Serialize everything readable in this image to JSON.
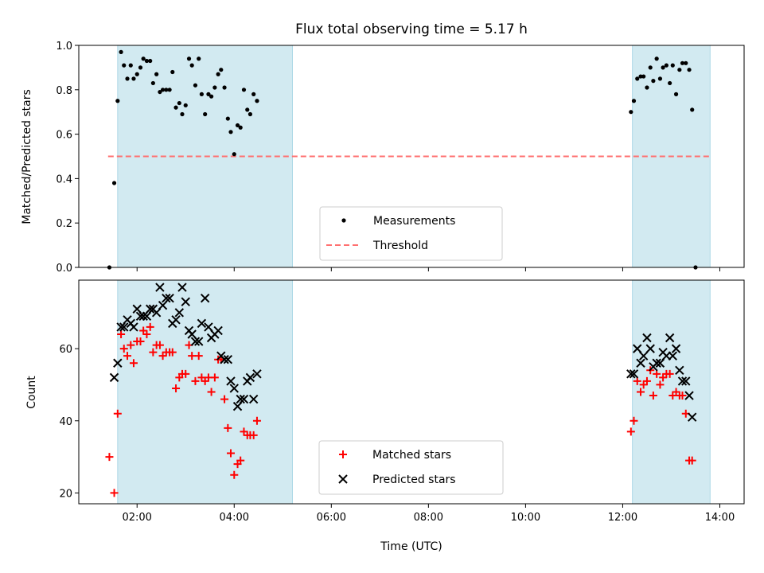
{
  "chart_data": {
    "title": "Flux total observing time = 5.17 h",
    "xlabel": "Time (UTC)",
    "x_tick_labels": [
      "02:00",
      "04:00",
      "06:00",
      "08:00",
      "10:00",
      "12:00",
      "14:00"
    ],
    "x_range_hours": [
      0.8,
      14.5
    ],
    "observing_windows_hours": [
      [
        1.6,
        5.2
      ],
      [
        12.2,
        13.8
      ]
    ],
    "colors": {
      "window_fill": "#add8e6",
      "measurement": "#000000",
      "threshold": "#ff7070",
      "matched": "#ff0000",
      "predicted": "#000000"
    },
    "panels": [
      {
        "type": "scatter",
        "ylabel": "Matched/Predicted stars",
        "ylim": [
          0.0,
          1.0
        ],
        "y_ticks": [
          "0.0",
          "0.2",
          "0.4",
          "0.6",
          "0.8",
          "1.0"
        ],
        "threshold": 0.5,
        "legend_position": "bottom-center",
        "legend": [
          "Measurements",
          "Threshold"
        ],
        "series": [
          {
            "name": "Measurements",
            "points": [
              [
                1.43,
                0.0
              ],
              [
                1.53,
                0.38
              ],
              [
                1.6,
                0.75
              ],
              [
                1.67,
                0.97
              ],
              [
                1.73,
                0.91
              ],
              [
                1.8,
                0.85
              ],
              [
                1.87,
                0.91
              ],
              [
                1.93,
                0.85
              ],
              [
                2.0,
                0.87
              ],
              [
                2.07,
                0.9
              ],
              [
                2.13,
                0.94
              ],
              [
                2.2,
                0.93
              ],
              [
                2.27,
                0.93
              ],
              [
                2.33,
                0.83
              ],
              [
                2.4,
                0.87
              ],
              [
                2.47,
                0.79
              ],
              [
                2.53,
                0.8
              ],
              [
                2.6,
                0.8
              ],
              [
                2.67,
                0.8
              ],
              [
                2.73,
                0.88
              ],
              [
                2.8,
                0.72
              ],
              [
                2.87,
                0.74
              ],
              [
                2.93,
                0.69
              ],
              [
                3.0,
                0.73
              ],
              [
                3.07,
                0.94
              ],
              [
                3.13,
                0.91
              ],
              [
                3.2,
                0.82
              ],
              [
                3.27,
                0.94
              ],
              [
                3.33,
                0.78
              ],
              [
                3.4,
                0.69
              ],
              [
                3.47,
                0.78
              ],
              [
                3.53,
                0.77
              ],
              [
                3.6,
                0.81
              ],
              [
                3.67,
                0.87
              ],
              [
                3.73,
                0.89
              ],
              [
                3.8,
                0.81
              ],
              [
                3.87,
                0.67
              ],
              [
                3.93,
                0.61
              ],
              [
                4.0,
                0.51
              ],
              [
                4.07,
                0.64
              ],
              [
                4.13,
                0.63
              ],
              [
                4.2,
                0.8
              ],
              [
                4.27,
                0.71
              ],
              [
                4.33,
                0.69
              ],
              [
                4.4,
                0.78
              ],
              [
                4.47,
                0.75
              ],
              [
                12.17,
                0.7
              ],
              [
                12.23,
                0.75
              ],
              [
                12.3,
                0.85
              ],
              [
                12.37,
                0.86
              ],
              [
                12.43,
                0.86
              ],
              [
                12.5,
                0.81
              ],
              [
                12.57,
                0.9
              ],
              [
                12.63,
                0.84
              ],
              [
                12.7,
                0.94
              ],
              [
                12.77,
                0.85
              ],
              [
                12.83,
                0.9
              ],
              [
                12.9,
                0.91
              ],
              [
                12.97,
                0.83
              ],
              [
                13.03,
                0.91
              ],
              [
                13.1,
                0.78
              ],
              [
                13.17,
                0.89
              ],
              [
                13.23,
                0.92
              ],
              [
                13.3,
                0.92
              ],
              [
                13.37,
                0.89
              ],
              [
                13.43,
                0.71
              ],
              [
                13.5,
                0.0
              ]
            ]
          }
        ]
      },
      {
        "type": "scatter",
        "ylabel": "Count",
        "ylim": [
          17,
          79
        ],
        "y_ticks": [
          "20",
          "40",
          "60"
        ],
        "legend_position": "bottom-center",
        "legend": [
          "Matched stars",
          "Predicted stars"
        ],
        "series": [
          {
            "name": "Matched stars",
            "points": [
              [
                1.43,
                30
              ],
              [
                1.53,
                20
              ],
              [
                1.6,
                42
              ],
              [
                1.67,
                64
              ],
              [
                1.73,
                60
              ],
              [
                1.8,
                58
              ],
              [
                1.87,
                61
              ],
              [
                1.93,
                56
              ],
              [
                2.0,
                62
              ],
              [
                2.07,
                62
              ],
              [
                2.13,
                65
              ],
              [
                2.2,
                64
              ],
              [
                2.27,
                66
              ],
              [
                2.33,
                59
              ],
              [
                2.4,
                61
              ],
              [
                2.47,
                61
              ],
              [
                2.53,
                58
              ],
              [
                2.6,
                59
              ],
              [
                2.67,
                59
              ],
              [
                2.73,
                59
              ],
              [
                2.8,
                49
              ],
              [
                2.87,
                52
              ],
              [
                2.93,
                53
              ],
              [
                3.0,
                53
              ],
              [
                3.07,
                61
              ],
              [
                3.13,
                58
              ],
              [
                3.2,
                51
              ],
              [
                3.27,
                58
              ],
              [
                3.33,
                52
              ],
              [
                3.4,
                51
              ],
              [
                3.47,
                52
              ],
              [
                3.53,
                48
              ],
              [
                3.6,
                52
              ],
              [
                3.67,
                57
              ],
              [
                3.73,
                57
              ],
              [
                3.8,
                46
              ],
              [
                3.87,
                38
              ],
              [
                3.93,
                31
              ],
              [
                4.0,
                25
              ],
              [
                4.07,
                28
              ],
              [
                4.13,
                29
              ],
              [
                4.2,
                37
              ],
              [
                4.27,
                36
              ],
              [
                4.33,
                36
              ],
              [
                4.4,
                36
              ],
              [
                4.47,
                40
              ],
              [
                12.17,
                37
              ],
              [
                12.23,
                40
              ],
              [
                12.3,
                51
              ],
              [
                12.37,
                48
              ],
              [
                12.43,
                50
              ],
              [
                12.5,
                51
              ],
              [
                12.57,
                54
              ],
              [
                12.63,
                47
              ],
              [
                12.7,
                53
              ],
              [
                12.77,
                50
              ],
              [
                12.83,
                52
              ],
              [
                12.9,
                53
              ],
              [
                12.97,
                53
              ],
              [
                13.03,
                47
              ],
              [
                13.1,
                48
              ],
              [
                13.17,
                47
              ],
              [
                13.23,
                47
              ],
              [
                13.3,
                42
              ],
              [
                13.37,
                29
              ],
              [
                13.43,
                29
              ]
            ]
          },
          {
            "name": "Predicted stars",
            "points": [
              [
                1.53,
                52
              ],
              [
                1.6,
                56
              ],
              [
                1.67,
                66
              ],
              [
                1.73,
                66
              ],
              [
                1.8,
                68
              ],
              [
                1.87,
                67
              ],
              [
                1.93,
                66
              ],
              [
                2.0,
                71
              ],
              [
                2.07,
                69
              ],
              [
                2.13,
                69
              ],
              [
                2.2,
                69
              ],
              [
                2.27,
                71
              ],
              [
                2.33,
                71
              ],
              [
                2.4,
                70
              ],
              [
                2.47,
                77
              ],
              [
                2.53,
                72
              ],
              [
                2.6,
                74
              ],
              [
                2.67,
                74
              ],
              [
                2.73,
                67
              ],
              [
                2.8,
                68
              ],
              [
                2.87,
                70
              ],
              [
                2.93,
                77
              ],
              [
                3.0,
                73
              ],
              [
                3.07,
                65
              ],
              [
                3.13,
                64
              ],
              [
                3.2,
                62
              ],
              [
                3.27,
                62
              ],
              [
                3.33,
                67
              ],
              [
                3.4,
                74
              ],
              [
                3.47,
                66
              ],
              [
                3.53,
                63
              ],
              [
                3.6,
                64
              ],
              [
                3.67,
                65
              ],
              [
                3.73,
                58
              ],
              [
                3.8,
                57
              ],
              [
                3.87,
                57
              ],
              [
                3.93,
                51
              ],
              [
                4.0,
                49
              ],
              [
                4.07,
                44
              ],
              [
                4.13,
                46
              ],
              [
                4.2,
                46
              ],
              [
                4.27,
                51
              ],
              [
                4.33,
                52
              ],
              [
                4.4,
                46
              ],
              [
                4.47,
                53
              ],
              [
                12.17,
                53
              ],
              [
                12.23,
                53
              ],
              [
                12.3,
                60
              ],
              [
                12.37,
                56
              ],
              [
                12.43,
                58
              ],
              [
                12.5,
                63
              ],
              [
                12.57,
                60
              ],
              [
                12.63,
                55
              ],
              [
                12.7,
                56
              ],
              [
                12.77,
                56
              ],
              [
                12.83,
                59
              ],
              [
                12.9,
                58
              ],
              [
                12.97,
                63
              ],
              [
                13.03,
                58
              ],
              [
                13.1,
                60
              ],
              [
                13.17,
                54
              ],
              [
                13.23,
                51
              ],
              [
                13.3,
                51
              ],
              [
                13.37,
                47
              ],
              [
                13.43,
                41
              ]
            ]
          }
        ]
      }
    ]
  }
}
